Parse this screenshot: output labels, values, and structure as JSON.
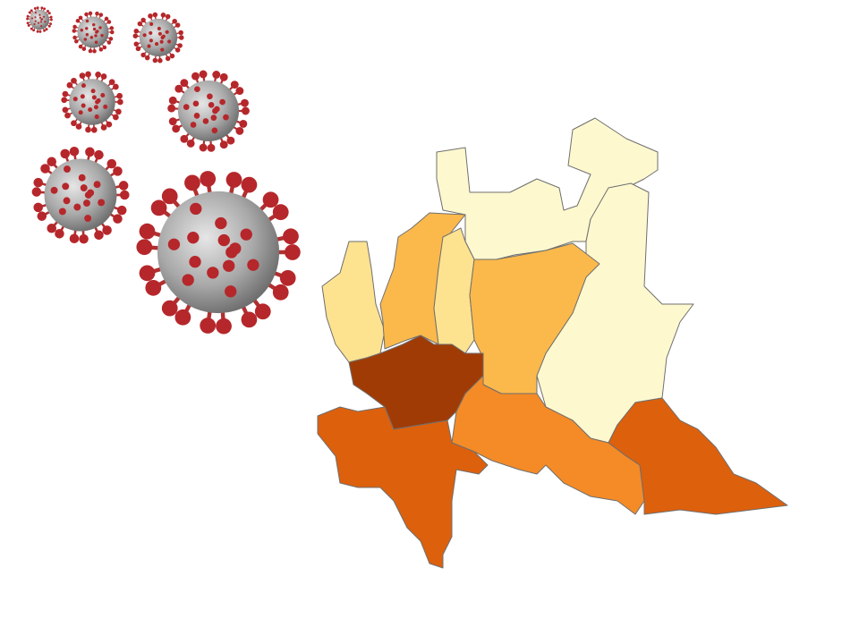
{
  "map": {
    "regions": [
      {
        "color": "#fef8cf"
      },
      {
        "color": "#fef8cf"
      },
      {
        "color": "#fde290"
      },
      {
        "color": "#fbb94b"
      },
      {
        "color": "#fde290"
      },
      {
        "color": "#fbb94b"
      },
      {
        "color": "#a13b06"
      },
      {
        "color": "#f58b26"
      },
      {
        "color": "#dd600d"
      },
      {
        "color": "#dd600d"
      }
    ]
  }
}
